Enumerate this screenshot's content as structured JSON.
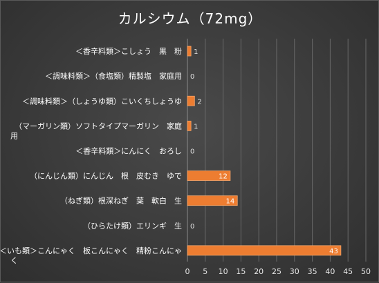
{
  "chart_data": {
    "type": "bar",
    "orientation": "horizontal",
    "title": "カルシウム（72mg）",
    "categories": [
      "＜香辛料類＞こしょう　黒　粉",
      "＜調味料類＞（食塩類）精製塩　家庭用",
      "＜調味料類＞（しょうゆ類）こいくちしょうゆ",
      "（マーガリン類）ソフトタイプマーガリン　家庭用",
      "＜香辛料類＞にんにく　おろし",
      "（にんじん類）にんじん　根　皮むき　ゆで",
      "（ねぎ類）根深ねぎ　葉　軟白　生",
      "（ひらたけ類）エリンギ　生",
      "＜いも類＞こんにゃく　板こんにゃく　精粉こんにゃく"
    ],
    "values": [
      1,
      0,
      2,
      1,
      0,
      12,
      14,
      0,
      43
    ],
    "xlim": [
      0,
      50
    ],
    "xticks": [
      0,
      5,
      10,
      15,
      20,
      25,
      30,
      35,
      40,
      45,
      50
    ],
    "grid": "vertical",
    "bar_color": "#ed7d31",
    "data_labels": true
  }
}
